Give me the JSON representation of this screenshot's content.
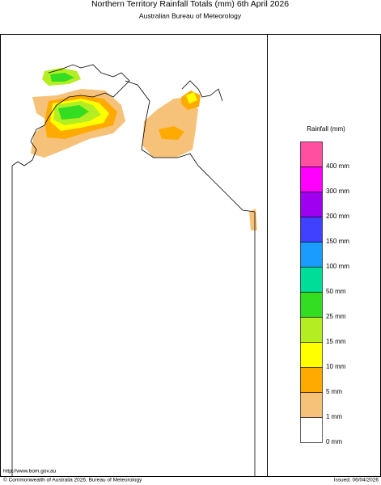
{
  "header": {
    "title": "Northern Territory Rainfall Totals (mm) 6th April 2026",
    "subtitle": "Australian Bureau of Meteorology"
  },
  "legend": {
    "title": "Rainfall (mm)",
    "items": [
      {
        "label": "400 mm",
        "color": "#ff4fa0"
      },
      {
        "label": "300 mm",
        "color": "#ff00ff"
      },
      {
        "label": "200 mm",
        "color": "#a000f0"
      },
      {
        "label": "150 mm",
        "color": "#4040ff"
      },
      {
        "label": "100 mm",
        "color": "#1a9cff"
      },
      {
        "label": "50 mm",
        "color": "#00dd99"
      },
      {
        "label": "25 mm",
        "color": "#33dd22"
      },
      {
        "label": "15 mm",
        "color": "#b4ee22"
      },
      {
        "label": "10 mm",
        "color": "#ffff00"
      },
      {
        "label": "5 mm",
        "color": "#ffaa00"
      },
      {
        "label": "1 mm",
        "color": "#f6c27a"
      },
      {
        "label": "0 mm",
        "color": "#ffffff"
      }
    ]
  },
  "footer": {
    "url": "http://www.bom.gov.au",
    "copyright": "© Commonwealth of Australia 2026, Bureau of Meteorology",
    "issued": "Issued: 06/04/2026"
  }
}
